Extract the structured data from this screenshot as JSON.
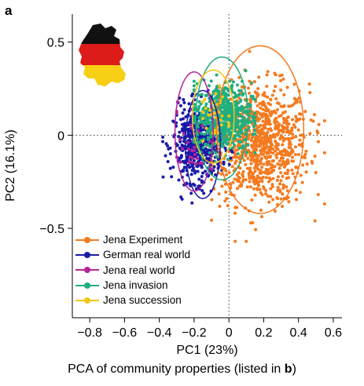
{
  "panel_label": "a",
  "caption": {
    "text": "PCA of community properties (listed in ",
    "bold": "b",
    "close": ")"
  },
  "chart_data": {
    "type": "scatter",
    "title": "",
    "xlabel": "PC1 (23%)",
    "ylabel": "PC2 (16.1%)",
    "xlim": [
      -0.9,
      0.65
    ],
    "ylim": [
      -0.98,
      0.65
    ],
    "x_ticks": [
      -0.8,
      -0.6,
      -0.4,
      -0.2,
      0,
      0.2,
      0.4,
      0.6
    ],
    "x_tick_labels": [
      "−0.8",
      "−0.6",
      "−0.4",
      "−0.2",
      "0",
      "0.2",
      "0.4",
      "0.6"
    ],
    "y_ticks": [
      -0.5,
      0,
      0.5
    ],
    "y_tick_labels": [
      "−0.5",
      "0",
      "0.5"
    ],
    "reference_lines": {
      "x": 0,
      "y": 0,
      "style": "dotted"
    },
    "grid": false,
    "legend_position": "bottom-left",
    "series": [
      {
        "name": "Jena Experiment",
        "color": "#f47a1f",
        "n_points": 900,
        "center": [
          0.18,
          -0.05
        ],
        "spread": [
          0.14,
          0.16
        ],
        "x_range": [
          -0.1,
          0.55
        ],
        "y_range": [
          -0.57,
          0.45
        ],
        "ellipse": {
          "center": [
            0.18,
            0.03
          ],
          "radius": [
            0.25,
            0.45
          ]
        }
      },
      {
        "name": "German real world",
        "color": "#1a1aa8",
        "n_points": 500,
        "center": [
          -0.18,
          -0.05
        ],
        "spread": [
          0.07,
          0.1
        ],
        "x_range": [
          -0.38,
          0.02
        ],
        "y_range": [
          -0.42,
          0.35
        ],
        "ellipse": {
          "center": [
            -0.15,
            -0.05
          ],
          "radius": [
            0.1,
            0.29
          ]
        }
      },
      {
        "name": "Jena real world",
        "color": "#b4239a",
        "n_points": 40,
        "center": [
          -0.2,
          0.0
        ],
        "spread": [
          0.06,
          0.1
        ],
        "x_range": [
          -0.3,
          -0.1
        ],
        "y_range": [
          -0.25,
          0.3
        ],
        "ellipse": {
          "center": [
            -0.2,
            0.02
          ],
          "radius": [
            0.11,
            0.32
          ]
        }
      },
      {
        "name": "Jena invasion",
        "color": "#1fae7f",
        "n_points": 600,
        "center": [
          -0.03,
          0.1
        ],
        "spread": [
          0.08,
          0.09
        ],
        "x_range": [
          -0.2,
          0.15
        ],
        "y_range": [
          -0.2,
          0.42
        ],
        "ellipse": {
          "center": [
            -0.04,
            0.09
          ],
          "radius": [
            0.15,
            0.33
          ]
        }
      },
      {
        "name": "Jena succession",
        "color": "#f2c516",
        "n_points": 40,
        "center": [
          -0.08,
          0.1
        ],
        "spread": [
          0.05,
          0.08
        ],
        "x_range": [
          -0.15,
          0.0
        ],
        "y_range": [
          -0.05,
          0.3
        ],
        "ellipse": {
          "center": [
            -0.09,
            0.1
          ],
          "radius": [
            0.12,
            0.25
          ]
        }
      }
    ]
  },
  "flag": {
    "colors": [
      "#111111",
      "#dd1b18",
      "#f7d015"
    ],
    "name": "germany-map-flag"
  }
}
